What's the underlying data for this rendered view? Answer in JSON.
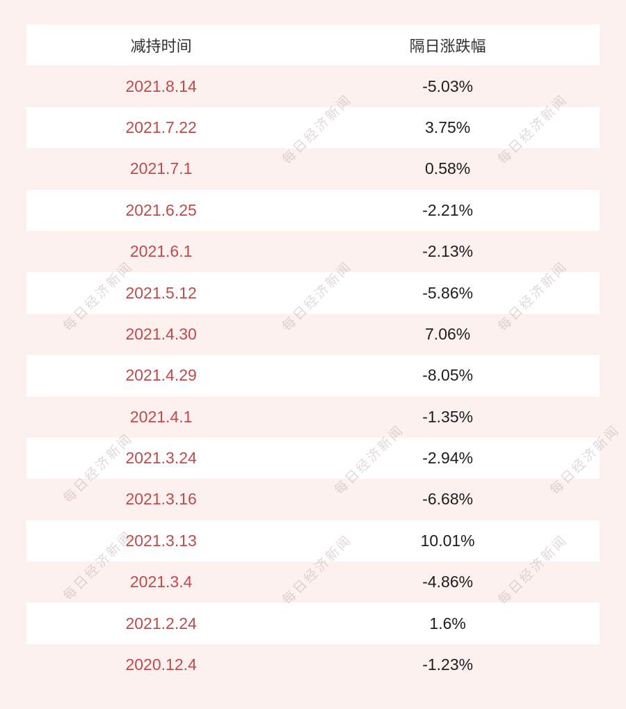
{
  "table": {
    "headers": [
      "减持时间",
      "隔日涨跌幅"
    ],
    "rows": [
      {
        "date": "2021.8.14",
        "change": "-5.03%"
      },
      {
        "date": "2021.7.22",
        "change": "3.75%"
      },
      {
        "date": "2021.7.1",
        "change": "0.58%"
      },
      {
        "date": "2021.6.25",
        "change": "-2.21%"
      },
      {
        "date": "2021.6.1",
        "change": "-2.13%"
      },
      {
        "date": "2021.5.12",
        "change": "-5.86%"
      },
      {
        "date": "2021.4.30",
        "change": "7.06%"
      },
      {
        "date": "2021.4.29",
        "change": "-8.05%"
      },
      {
        "date": "2021.4.1",
        "change": "-1.35%"
      },
      {
        "date": "2021.3.24",
        "change": "-2.94%"
      },
      {
        "date": "2021.3.16",
        "change": "-6.68%"
      },
      {
        "date": "2021.3.13",
        "change": "10.01%"
      },
      {
        "date": "2021.3.4",
        "change": "-4.86%"
      },
      {
        "date": "2021.2.24",
        "change": "1.6%"
      },
      {
        "date": "2020.12.4",
        "change": "-1.23%"
      }
    ]
  },
  "watermark": {
    "text": "每日经济新闻"
  },
  "colors": {
    "page_bg": "#fdf1f0",
    "row_white": "#ffffff",
    "date_red": "#c04a4a",
    "change_black": "#1d1d1d",
    "header_text": "#2f2f2f",
    "watermark": "rgba(176,152,152,0.38)"
  },
  "chart_data": {
    "type": "table",
    "title": "",
    "columns": [
      "减持时间",
      "隔日涨跌幅"
    ],
    "rows": [
      [
        "2021.8.14",
        "-5.03%"
      ],
      [
        "2021.7.22",
        "3.75%"
      ],
      [
        "2021.7.1",
        "0.58%"
      ],
      [
        "2021.6.25",
        "-2.21%"
      ],
      [
        "2021.6.1",
        "-2.13%"
      ],
      [
        "2021.5.12",
        "-5.86%"
      ],
      [
        "2021.4.30",
        "7.06%"
      ],
      [
        "2021.4.29",
        "-8.05%"
      ],
      [
        "2021.4.1",
        "-1.35%"
      ],
      [
        "2021.3.24",
        "-2.94%"
      ],
      [
        "2021.3.16",
        "-6.68%"
      ],
      [
        "2021.3.13",
        "10.01%"
      ],
      [
        "2021.3.4",
        "-4.86%"
      ],
      [
        "2021.2.24",
        "1.6%"
      ],
      [
        "2020.12.4",
        "-1.23%"
      ]
    ],
    "change_values_percent": [
      -5.03,
      3.75,
      0.58,
      -2.21,
      -2.13,
      -5.86,
      7.06,
      -8.05,
      -1.35,
      -2.94,
      -6.68,
      10.01,
      -4.86,
      1.6,
      -1.23
    ]
  }
}
